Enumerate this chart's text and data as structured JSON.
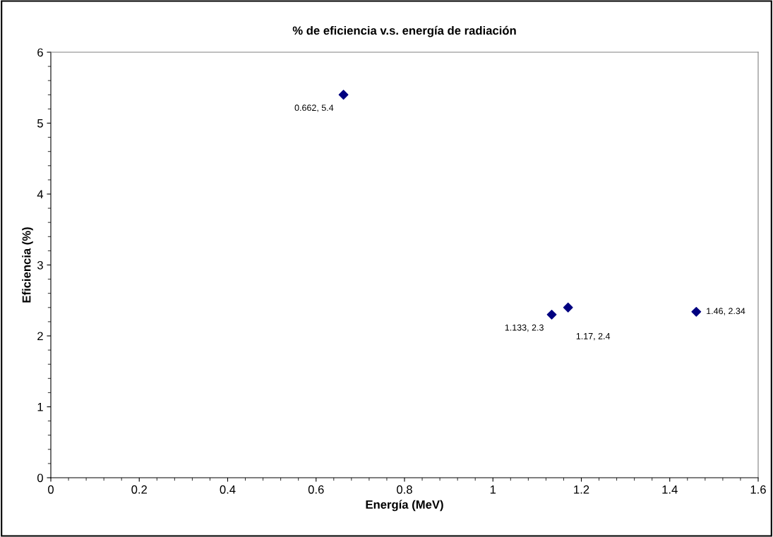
{
  "chart_data": {
    "type": "scatter",
    "title": "% de eficiencia v.s. energía de radiación",
    "xlabel": "Energía (MeV)",
    "ylabel": "Eficiencia (%)",
    "x": [
      0.662,
      1.133,
      1.17,
      1.46
    ],
    "values": [
      5.4,
      2.3,
      2.4,
      2.34
    ],
    "value_labels": [
      "0.662, 5.4",
      "1.133, 2.3",
      "1.17, 2.4",
      "1.46, 2.34"
    ],
    "color": "#000080",
    "marker": "diamond",
    "grid": false,
    "legend": false,
    "xlim": [
      0,
      1.6
    ],
    "xticks": [
      0,
      0.2,
      0.4,
      0.6,
      0.8,
      1,
      1.2,
      1.4,
      1.6
    ],
    "ylim": [
      0,
      6
    ],
    "yticks": [
      0,
      1,
      2,
      3,
      4,
      5,
      6
    ]
  }
}
